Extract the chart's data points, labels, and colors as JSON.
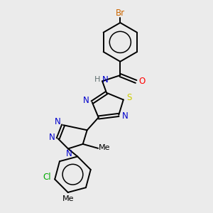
{
  "background_color": "#ebebeb",
  "colors": {
    "black": "#000000",
    "blue": "#0000cc",
    "red": "#ff0000",
    "green": "#00aa00",
    "yellow_s": "#cccc00",
    "orange_br": "#cc6600",
    "gray_h": "#607070"
  },
  "layout": {
    "xlim": [
      0,
      1
    ],
    "ylim": [
      0,
      1
    ]
  }
}
